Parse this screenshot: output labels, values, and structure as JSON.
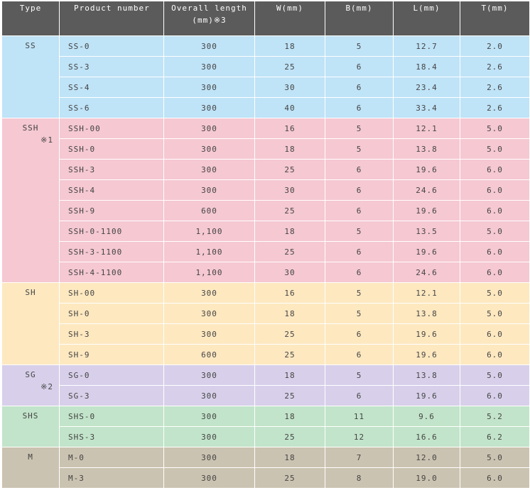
{
  "header": {
    "type": "Type",
    "product_number": "Product number",
    "overall_length_line1": "Overall length",
    "overall_length_line2": "(mm)※3",
    "w": "W(mm)",
    "b": "B(mm)",
    "l": "L(mm)",
    "t": "T(mm)"
  },
  "colors": {
    "header_bg": "#5b5b5b",
    "SS": "#bfe3f7",
    "SSH": "#f5c8d2",
    "SH": "#fde8c0",
    "SG": "#d8d0ea",
    "SHS": "#c2e4ca",
    "M": "#cbc3b1"
  },
  "groups": [
    {
      "type": "SS",
      "note": "",
      "rows": [
        {
          "product": "SS-0",
          "length": "300",
          "w": "18",
          "b": "5",
          "l": "12.7",
          "t": "2.0"
        },
        {
          "product": "SS-3",
          "length": "300",
          "w": "25",
          "b": "6",
          "l": "18.4",
          "t": "2.6"
        },
        {
          "product": "SS-4",
          "length": "300",
          "w": "30",
          "b": "6",
          "l": "23.4",
          "t": "2.6"
        },
        {
          "product": "SS-6",
          "length": "300",
          "w": "40",
          "b": "6",
          "l": "33.4",
          "t": "2.6"
        }
      ]
    },
    {
      "type": "SSH",
      "note": "※1",
      "rows": [
        {
          "product": "SSH-00",
          "length": "300",
          "w": "16",
          "b": "5",
          "l": "12.1",
          "t": "5.0"
        },
        {
          "product": "SSH-0",
          "length": "300",
          "w": "18",
          "b": "5",
          "l": "13.8",
          "t": "5.0"
        },
        {
          "product": "SSH-3",
          "length": "300",
          "w": "25",
          "b": "6",
          "l": "19.6",
          "t": "6.0"
        },
        {
          "product": "SSH-4",
          "length": "300",
          "w": "30",
          "b": "6",
          "l": "24.6",
          "t": "6.0"
        },
        {
          "product": "SSH-9",
          "length": "600",
          "w": "25",
          "b": "6",
          "l": "19.6",
          "t": "6.0"
        },
        {
          "product": "SSH-0-1100",
          "length": "1,100",
          "w": "18",
          "b": "5",
          "l": "13.5",
          "t": "5.0"
        },
        {
          "product": "SSH-3-1100",
          "length": "1,100",
          "w": "25",
          "b": "6",
          "l": "19.6",
          "t": "6.0"
        },
        {
          "product": "SSH-4-1100",
          "length": "1,100",
          "w": "30",
          "b": "6",
          "l": "24.6",
          "t": "6.0"
        }
      ]
    },
    {
      "type": "SH",
      "note": "",
      "rows": [
        {
          "product": "SH-00",
          "length": "300",
          "w": "16",
          "b": "5",
          "l": "12.1",
          "t": "5.0"
        },
        {
          "product": "SH-0",
          "length": "300",
          "w": "18",
          "b": "5",
          "l": "13.8",
          "t": "5.0"
        },
        {
          "product": "SH-3",
          "length": "300",
          "w": "25",
          "b": "6",
          "l": "19.6",
          "t": "6.0"
        },
        {
          "product": "SH-9",
          "length": "600",
          "w": "25",
          "b": "6",
          "l": "19.6",
          "t": "6.0"
        }
      ]
    },
    {
      "type": "SG",
      "note": "※2",
      "rows": [
        {
          "product": "SG-0",
          "length": "300",
          "w": "18",
          "b": "5",
          "l": "13.8",
          "t": "5.0"
        },
        {
          "product": "SG-3",
          "length": "300",
          "w": "25",
          "b": "6",
          "l": "19.6",
          "t": "6.0"
        }
      ]
    },
    {
      "type": "SHS",
      "note": "",
      "rows": [
        {
          "product": "SHS-0",
          "length": "300",
          "w": "18",
          "b": "11",
          "l": "9.6",
          "t": "5.2"
        },
        {
          "product": "SHS-3",
          "length": "300",
          "w": "25",
          "b": "12",
          "l": "16.6",
          "t": "6.2"
        }
      ]
    },
    {
      "type": "M",
      "note": "",
      "rows": [
        {
          "product": "M-0",
          "length": "300",
          "w": "18",
          "b": "7",
          "l": "12.0",
          "t": "5.0"
        },
        {
          "product": "M-3",
          "length": "300",
          "w": "25",
          "b": "8",
          "l": "19.0",
          "t": "6.0"
        }
      ]
    }
  ]
}
